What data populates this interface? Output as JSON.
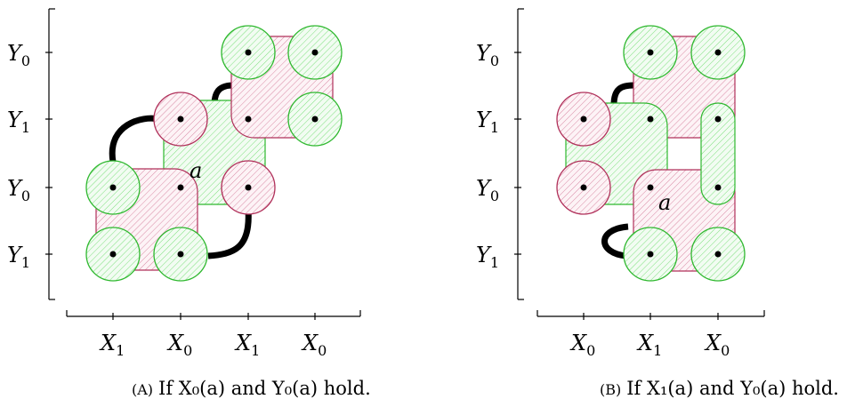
{
  "panel_a": {
    "y_labels": [
      {
        "main": "Y",
        "sub": "0"
      },
      {
        "main": "Y",
        "sub": "1"
      },
      {
        "main": "Y",
        "sub": "0"
      },
      {
        "main": "Y",
        "sub": "1"
      }
    ],
    "x_labels": [
      {
        "main": "X",
        "sub": "1"
      },
      {
        "main": "X",
        "sub": "0"
      },
      {
        "main": "X",
        "sub": "1"
      },
      {
        "main": "X",
        "sub": "0"
      }
    ],
    "node_label": "a",
    "caption_tag": "(A)",
    "caption_text": "If X₀(a) and Y₀(a) hold."
  },
  "panel_b": {
    "y_labels": [
      {
        "main": "Y",
        "sub": "0"
      },
      {
        "main": "Y",
        "sub": "1"
      },
      {
        "main": "Y",
        "sub": "0"
      },
      {
        "main": "Y",
        "sub": "1"
      }
    ],
    "x_labels": [
      {
        "main": "X",
        "sub": "0"
      },
      {
        "main": "X",
        "sub": "1"
      },
      {
        "main": "X",
        "sub": "0"
      }
    ],
    "node_label": "a",
    "caption_tag": "(B)",
    "caption_text": "If X₁(a) and Y₀(a) hold."
  },
  "colors": {
    "red_region": "#b0305a",
    "green_region": "#2fb82f",
    "edge": "#000000"
  }
}
